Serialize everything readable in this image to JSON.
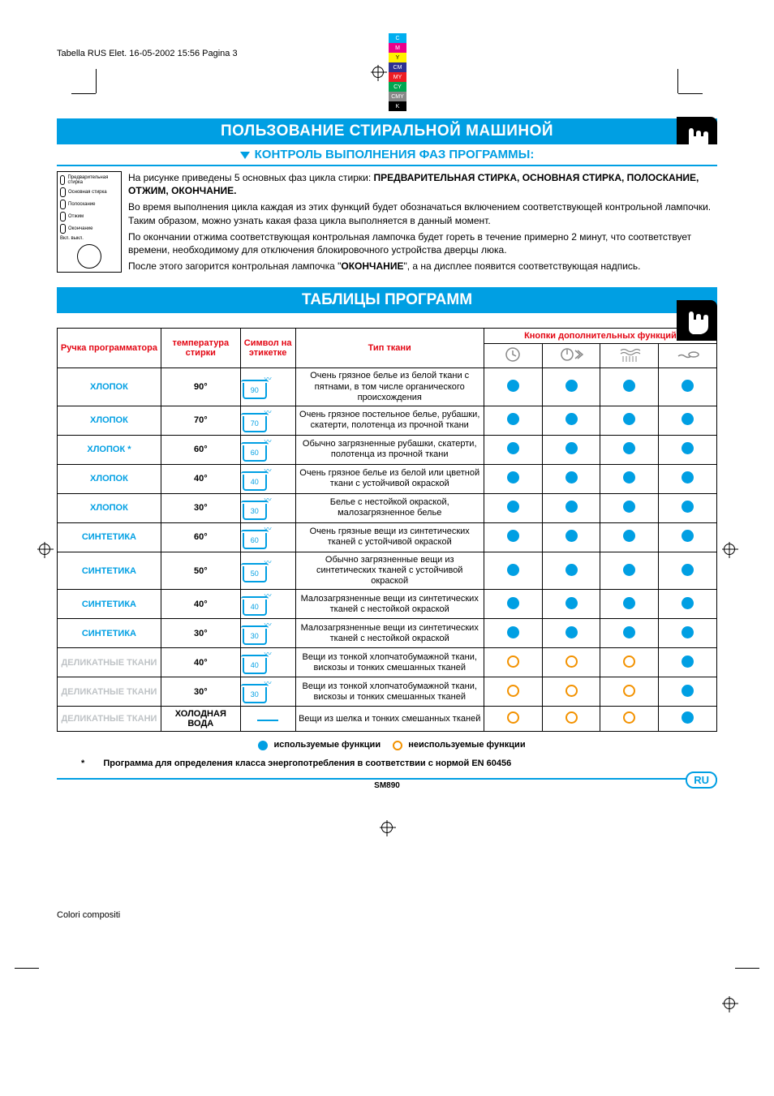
{
  "header": "Tabella RUS Elet. 16-05-2002 15:56 Pagina 3",
  "color_swatches": [
    {
      "label": "C",
      "bg": "#00aeef"
    },
    {
      "label": "M",
      "bg": "#ec008c"
    },
    {
      "label": "Y",
      "bg": "#fff200"
    },
    {
      "label": "CM",
      "bg": "#2e3192"
    },
    {
      "label": "MY",
      "bg": "#ed1c24"
    },
    {
      "label": "CY",
      "bg": "#00a651"
    },
    {
      "label": "CMY",
      "bg": "#888888"
    },
    {
      "label": "K",
      "bg": "#000000"
    }
  ],
  "title_main": "ПОЛЬЗОВАНИЕ СТИРАЛЬНОЙ МАШИНОЙ",
  "subtitle": "КОНТРОЛЬ ВЫПОЛНЕНИЯ ФАЗ ПРОГРАММЫ:",
  "diagram_labels": {
    "l1": "Предварительная стирка",
    "l2": "Основная стирка",
    "l3": "Полоскание",
    "l4": "Отжим",
    "l5": "Окончание",
    "l6": "Вкл. выкл."
  },
  "body": {
    "p1a": "На рисунке приведены 5 основных фаз цикла стирки: ",
    "p1b": "ПРЕДВАРИТЕЛЬНАЯ СТИРКА, ОСНОВНАЯ СТИРКА, ПОЛОСКАНИЕ, ОТЖИМ, ОКОНЧАНИЕ.",
    "p2": "Во время выполнения цикла каждая из этих функций будет обозначаться включением соответствующей контрольной лампочки. Таким образом, можно узнать какая фаза цикла выполняется в данный момент.",
    "p3": "По окончании отжима соответствующая контрольная лампочка будет гореть в течение примерно 2 минут, что соответствует времени, необходимому для отключения блокировочного устройства дверцы люка.",
    "p4a": "После этого загорится контрольная лампочка \"",
    "p4b": "ОКОНЧАНИЕ",
    "p4c": "\", а на дисплее появится соответствующая надпись."
  },
  "section_title": "ТАБЛИЦЫ ПРОГРАММ",
  "table": {
    "headers": {
      "h1": "Ручка программатора",
      "h2": "температура стирки",
      "h3": "Символ на этикетке",
      "h4": "Тип ткани",
      "h5": "Кнопки дополнительных функций"
    },
    "rows": [
      {
        "label": "ХЛОПОК",
        "color": "#009fe3",
        "temp": "90°",
        "sym": "90",
        "fabric": "Очень грязное белье из белой ткани с пятнами, в том числе органического происхождения",
        "f": [
          1,
          1,
          1,
          1
        ]
      },
      {
        "label": "ХЛОПОК",
        "color": "#009fe3",
        "temp": "70°",
        "sym": "70",
        "fabric": "Очень грязное постельное белье, рубашки, скатерти, полотенца из прочной ткани",
        "f": [
          1,
          1,
          1,
          1
        ]
      },
      {
        "label": "ХЛОПОК *",
        "color": "#009fe3",
        "temp": "60°",
        "sym": "60",
        "fabric": "Обычно загрязненные рубашки, скатерти, полотенца из прочной ткани",
        "f": [
          1,
          1,
          1,
          1
        ]
      },
      {
        "label": "ХЛОПОК",
        "color": "#009fe3",
        "temp": "40°",
        "sym": "40",
        "fabric": "Очень грязное белье из белой или цветной ткани с устойчивой окраской",
        "f": [
          1,
          1,
          1,
          1
        ]
      },
      {
        "label": "ХЛОПОК",
        "color": "#009fe3",
        "temp": "30°",
        "sym": "30",
        "fabric": "Белье с нестойкой окраской, малозагрязненное белье",
        "f": [
          1,
          1,
          1,
          1
        ]
      },
      {
        "label": "СИНТЕТИКА",
        "color": "#009fe3",
        "temp": "60°",
        "sym": "60",
        "fabric": "Очень грязные вещи из синтетических тканей с устойчивой окраской",
        "f": [
          1,
          1,
          1,
          1
        ]
      },
      {
        "label": "СИНТЕТИКА",
        "color": "#009fe3",
        "temp": "50°",
        "sym": "50",
        "fabric": "Обычно загрязненные вещи из синтетических тканей с устойчивой окраской",
        "f": [
          1,
          1,
          1,
          1
        ]
      },
      {
        "label": "СИНТЕТИКА",
        "color": "#009fe3",
        "temp": "40°",
        "sym": "40",
        "fabric": "Малозагрязненные вещи из синтетических тканей с нестойкой окраской",
        "f": [
          1,
          1,
          1,
          1
        ]
      },
      {
        "label": "СИНТЕТИКА",
        "color": "#009fe3",
        "temp": "30°",
        "sym": "30",
        "fabric": "Малозагрязненные вещи из синтетических тканей с нестойкой окраской",
        "f": [
          1,
          1,
          1,
          1
        ]
      },
      {
        "label": "ДЕЛИКАТНЫЕ ТКАНИ",
        "color": "#bfc3c6",
        "temp": "40°",
        "sym": "40",
        "fabric": "Вещи из тонкой хлопчатобумажной ткани, вискозы и тонких смешанных тканей",
        "f": [
          0,
          0,
          0,
          1
        ]
      },
      {
        "label": "ДЕЛИКАТНЫЕ ТКАНИ",
        "color": "#bfc3c6",
        "temp": "30°",
        "sym": "30",
        "fabric": "Вещи из тонкой хлопчатобумажной ткани, вискозы и тонких смешанных тканей",
        "f": [
          0,
          0,
          0,
          1
        ]
      },
      {
        "label": "ДЕЛИКАТНЫЕ ТКАНИ",
        "color": "#bfc3c6",
        "temp": "ХОЛОДНАЯ ВОДА",
        "sym": "cold",
        "fabric": "Вещи из шелка и тонких смешанных тканей",
        "f": [
          0,
          0,
          0,
          1
        ]
      }
    ]
  },
  "legend": {
    "used": "используемые функции",
    "unused": "неиспользуемые функции"
  },
  "footnote_star": "*",
  "footnote": "Программа для определения класса энергопотребления в соответствии с нормой EN 60456",
  "model": "SM890",
  "lang_badge": "RU",
  "bottom": "Colori compositi"
}
